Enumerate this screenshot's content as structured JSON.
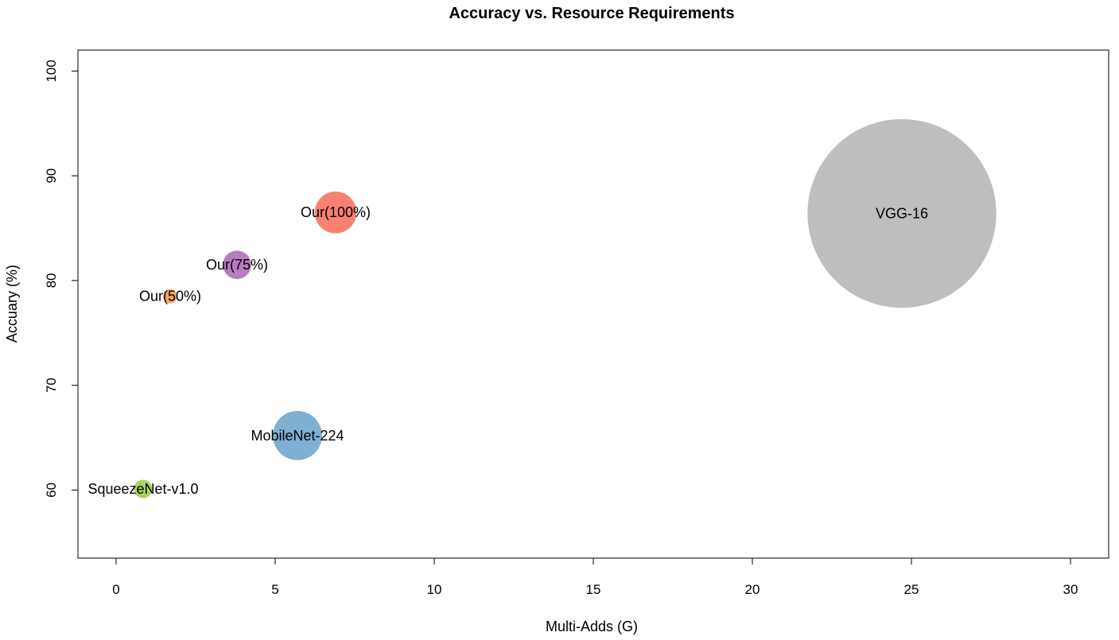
{
  "chart_data": {
    "type": "scatter",
    "title": "Accuracy vs. Resource Requirements",
    "xlabel": "Multi-Adds (G)",
    "ylabel": "Accuary (%)",
    "xlim": [
      -1.2,
      31.2
    ],
    "ylim": [
      53.5,
      102
    ],
    "xticks": [
      0,
      5,
      10,
      15,
      20,
      25,
      30
    ],
    "yticks": [
      60,
      70,
      80,
      90,
      100
    ],
    "grid": false,
    "points": [
      {
        "label": "Our(100%)",
        "x": 6.9,
        "y": 86.5,
        "size": 2.6,
        "color": "#fa8072"
      },
      {
        "label": "Our(75%)",
        "x": 3.8,
        "y": 81.5,
        "size": 1.2,
        "color": "#b87cc0"
      },
      {
        "label": "Our(50%)",
        "x": 1.7,
        "y": 78.5,
        "size": 0.3,
        "color": "#f4a460"
      },
      {
        "label": "MobileNet-224",
        "x": 5.7,
        "y": 65.2,
        "size": 3.6,
        "color": "#7fb0d4"
      },
      {
        "label": "SqueezeNet-v1.0",
        "x": 0.85,
        "y": 60.1,
        "size": 0.5,
        "color": "#a6d65a"
      },
      {
        "label": "VGG-16",
        "x": 24.7,
        "y": 86.4,
        "size": 53.0,
        "color": "#bebebe"
      }
    ]
  }
}
